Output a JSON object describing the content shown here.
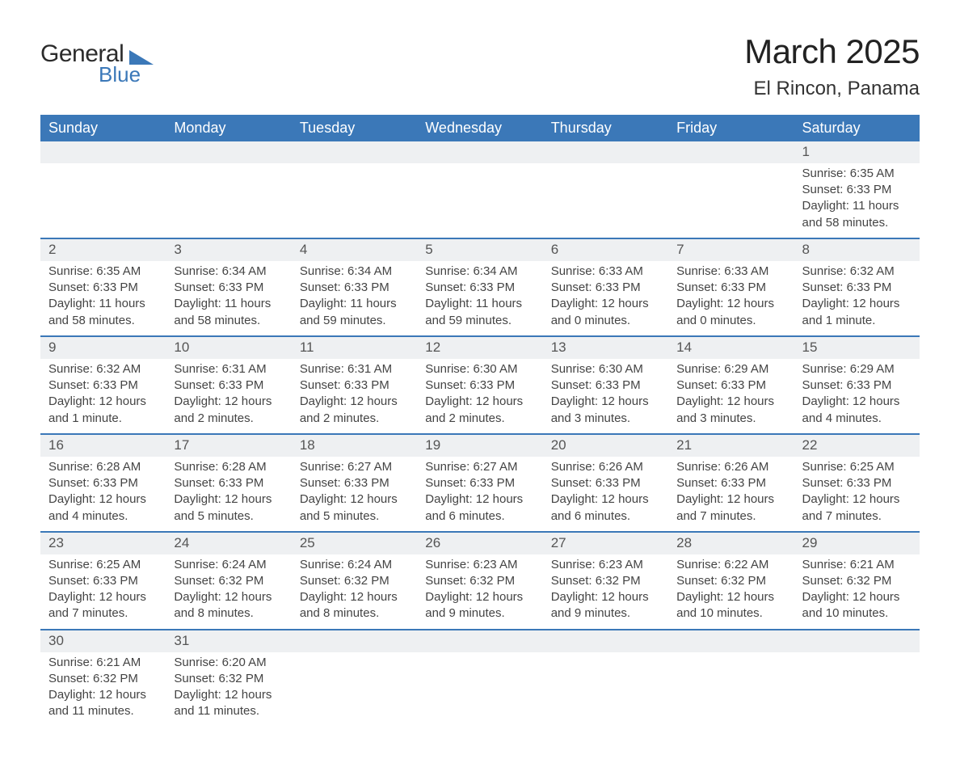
{
  "logo": {
    "text1": "General",
    "text2": "Blue",
    "accent_color": "#3b78b8"
  },
  "title": {
    "month": "March 2025",
    "location": "El Rincon, Panama"
  },
  "header_bg": "#3b78b8",
  "header_fg": "#ffffff",
  "daynum_bg": "#eef0f2",
  "border_color": "#3b78b8",
  "columns": [
    "Sunday",
    "Monday",
    "Tuesday",
    "Wednesday",
    "Thursday",
    "Friday",
    "Saturday"
  ],
  "weeks": [
    [
      null,
      null,
      null,
      null,
      null,
      null,
      {
        "n": "1",
        "sr": "Sunrise: 6:35 AM",
        "ss": "Sunset: 6:33 PM",
        "dl": "Daylight: 11 hours and 58 minutes."
      }
    ],
    [
      {
        "n": "2",
        "sr": "Sunrise: 6:35 AM",
        "ss": "Sunset: 6:33 PM",
        "dl": "Daylight: 11 hours and 58 minutes."
      },
      {
        "n": "3",
        "sr": "Sunrise: 6:34 AM",
        "ss": "Sunset: 6:33 PM",
        "dl": "Daylight: 11 hours and 58 minutes."
      },
      {
        "n": "4",
        "sr": "Sunrise: 6:34 AM",
        "ss": "Sunset: 6:33 PM",
        "dl": "Daylight: 11 hours and 59 minutes."
      },
      {
        "n": "5",
        "sr": "Sunrise: 6:34 AM",
        "ss": "Sunset: 6:33 PM",
        "dl": "Daylight: 11 hours and 59 minutes."
      },
      {
        "n": "6",
        "sr": "Sunrise: 6:33 AM",
        "ss": "Sunset: 6:33 PM",
        "dl": "Daylight: 12 hours and 0 minutes."
      },
      {
        "n": "7",
        "sr": "Sunrise: 6:33 AM",
        "ss": "Sunset: 6:33 PM",
        "dl": "Daylight: 12 hours and 0 minutes."
      },
      {
        "n": "8",
        "sr": "Sunrise: 6:32 AM",
        "ss": "Sunset: 6:33 PM",
        "dl": "Daylight: 12 hours and 1 minute."
      }
    ],
    [
      {
        "n": "9",
        "sr": "Sunrise: 6:32 AM",
        "ss": "Sunset: 6:33 PM",
        "dl": "Daylight: 12 hours and 1 minute."
      },
      {
        "n": "10",
        "sr": "Sunrise: 6:31 AM",
        "ss": "Sunset: 6:33 PM",
        "dl": "Daylight: 12 hours and 2 minutes."
      },
      {
        "n": "11",
        "sr": "Sunrise: 6:31 AM",
        "ss": "Sunset: 6:33 PM",
        "dl": "Daylight: 12 hours and 2 minutes."
      },
      {
        "n": "12",
        "sr": "Sunrise: 6:30 AM",
        "ss": "Sunset: 6:33 PM",
        "dl": "Daylight: 12 hours and 2 minutes."
      },
      {
        "n": "13",
        "sr": "Sunrise: 6:30 AM",
        "ss": "Sunset: 6:33 PM",
        "dl": "Daylight: 12 hours and 3 minutes."
      },
      {
        "n": "14",
        "sr": "Sunrise: 6:29 AM",
        "ss": "Sunset: 6:33 PM",
        "dl": "Daylight: 12 hours and 3 minutes."
      },
      {
        "n": "15",
        "sr": "Sunrise: 6:29 AM",
        "ss": "Sunset: 6:33 PM",
        "dl": "Daylight: 12 hours and 4 minutes."
      }
    ],
    [
      {
        "n": "16",
        "sr": "Sunrise: 6:28 AM",
        "ss": "Sunset: 6:33 PM",
        "dl": "Daylight: 12 hours and 4 minutes."
      },
      {
        "n": "17",
        "sr": "Sunrise: 6:28 AM",
        "ss": "Sunset: 6:33 PM",
        "dl": "Daylight: 12 hours and 5 minutes."
      },
      {
        "n": "18",
        "sr": "Sunrise: 6:27 AM",
        "ss": "Sunset: 6:33 PM",
        "dl": "Daylight: 12 hours and 5 minutes."
      },
      {
        "n": "19",
        "sr": "Sunrise: 6:27 AM",
        "ss": "Sunset: 6:33 PM",
        "dl": "Daylight: 12 hours and 6 minutes."
      },
      {
        "n": "20",
        "sr": "Sunrise: 6:26 AM",
        "ss": "Sunset: 6:33 PM",
        "dl": "Daylight: 12 hours and 6 minutes."
      },
      {
        "n": "21",
        "sr": "Sunrise: 6:26 AM",
        "ss": "Sunset: 6:33 PM",
        "dl": "Daylight: 12 hours and 7 minutes."
      },
      {
        "n": "22",
        "sr": "Sunrise: 6:25 AM",
        "ss": "Sunset: 6:33 PM",
        "dl": "Daylight: 12 hours and 7 minutes."
      }
    ],
    [
      {
        "n": "23",
        "sr": "Sunrise: 6:25 AM",
        "ss": "Sunset: 6:33 PM",
        "dl": "Daylight: 12 hours and 7 minutes."
      },
      {
        "n": "24",
        "sr": "Sunrise: 6:24 AM",
        "ss": "Sunset: 6:32 PM",
        "dl": "Daylight: 12 hours and 8 minutes."
      },
      {
        "n": "25",
        "sr": "Sunrise: 6:24 AM",
        "ss": "Sunset: 6:32 PM",
        "dl": "Daylight: 12 hours and 8 minutes."
      },
      {
        "n": "26",
        "sr": "Sunrise: 6:23 AM",
        "ss": "Sunset: 6:32 PM",
        "dl": "Daylight: 12 hours and 9 minutes."
      },
      {
        "n": "27",
        "sr": "Sunrise: 6:23 AM",
        "ss": "Sunset: 6:32 PM",
        "dl": "Daylight: 12 hours and 9 minutes."
      },
      {
        "n": "28",
        "sr": "Sunrise: 6:22 AM",
        "ss": "Sunset: 6:32 PM",
        "dl": "Daylight: 12 hours and 10 minutes."
      },
      {
        "n": "29",
        "sr": "Sunrise: 6:21 AM",
        "ss": "Sunset: 6:32 PM",
        "dl": "Daylight: 12 hours and 10 minutes."
      }
    ],
    [
      {
        "n": "30",
        "sr": "Sunrise: 6:21 AM",
        "ss": "Sunset: 6:32 PM",
        "dl": "Daylight: 12 hours and 11 minutes."
      },
      {
        "n": "31",
        "sr": "Sunrise: 6:20 AM",
        "ss": "Sunset: 6:32 PM",
        "dl": "Daylight: 12 hours and 11 minutes."
      },
      null,
      null,
      null,
      null,
      null
    ]
  ]
}
